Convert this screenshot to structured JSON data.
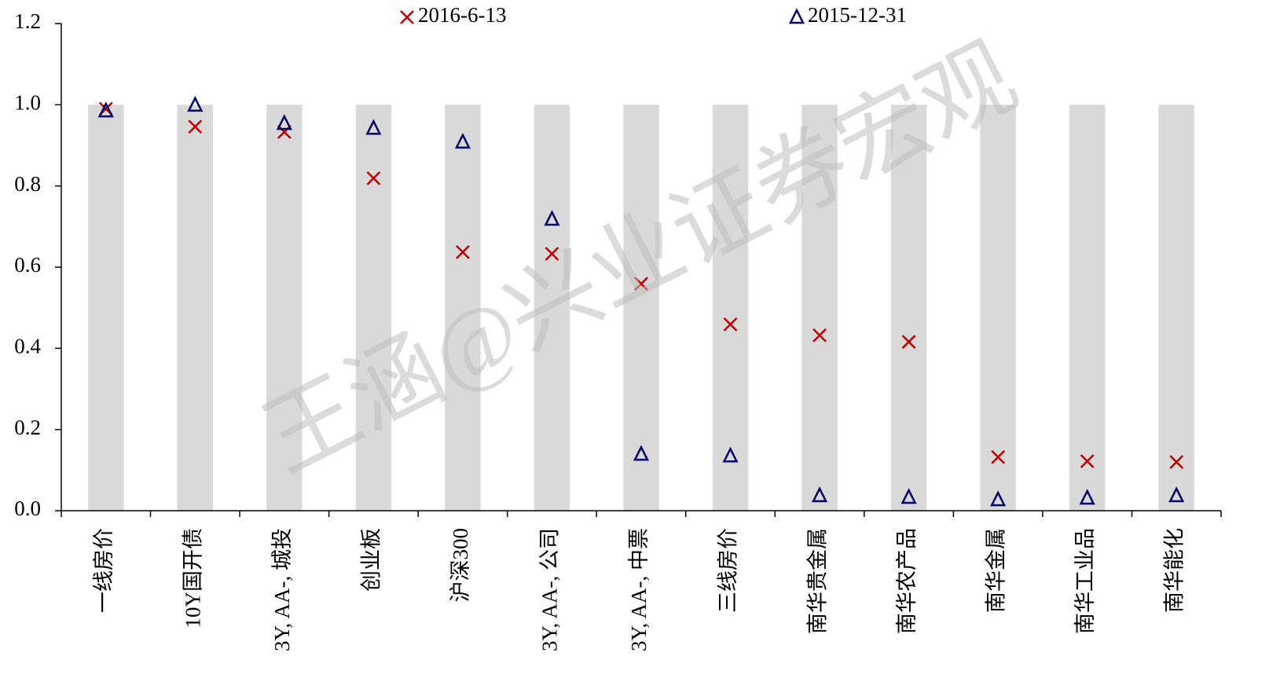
{
  "chart_data": {
    "type": "scatter",
    "watermark": "王涵@兴业证券宏观",
    "categories": [
      "一线房价",
      "10Y国开债",
      "3Y, AA-, 城投",
      "创业板",
      "沪深300",
      "3Y, AA-, 公司",
      "3Y, AA-, 中票",
      "三线房价",
      "南华贵金属",
      "南华农产品",
      "南华金属",
      "南华工业品",
      "南华能化"
    ],
    "bars": {
      "color": "#d9d9d9",
      "values": [
        1,
        1,
        1,
        1,
        1,
        1,
        1,
        1,
        1,
        1,
        1,
        1,
        1
      ]
    },
    "series": [
      {
        "name": "2016-6-13",
        "marker": "x",
        "color": "#c00000",
        "values": [
          0.99,
          0.946,
          0.933,
          0.819,
          0.637,
          0.633,
          0.559,
          0.459,
          0.432,
          0.416,
          0.132,
          0.122,
          0.12
        ]
      },
      {
        "name": "2015-12-31",
        "marker": "triangle",
        "color": "#000066",
        "values": [
          0.985,
          0.999,
          0.954,
          0.942,
          0.908,
          0.718,
          0.139,
          0.135,
          0.037,
          0.033,
          0.027,
          0.031,
          0.037
        ]
      }
    ],
    "ylim": [
      0,
      1.2
    ],
    "yticks": [
      {
        "value": 0,
        "label": "0.0"
      },
      0.2,
      0.4,
      0.6,
      0.8,
      {
        "value": 1,
        "label": "1.0"
      },
      1.2
    ],
    "grid": false
  }
}
